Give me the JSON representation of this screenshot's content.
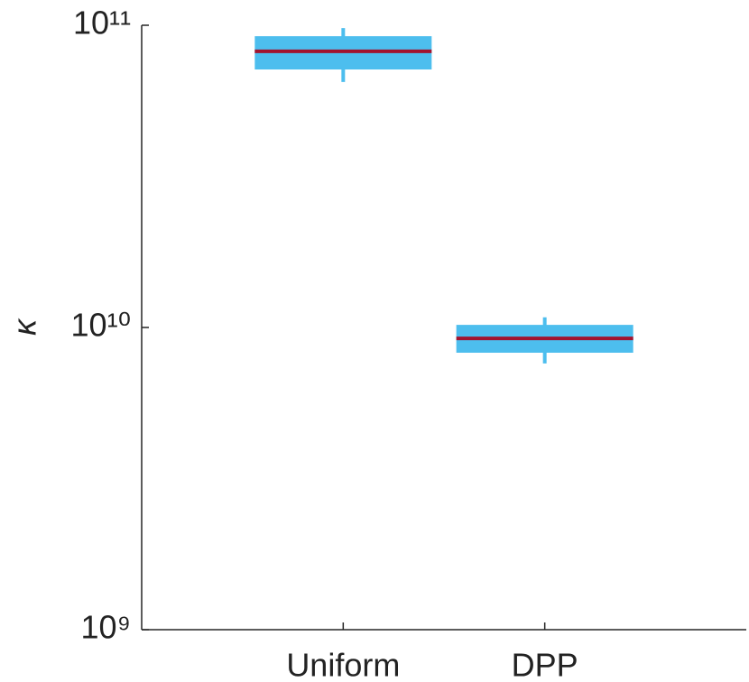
{
  "chart_data": {
    "type": "box",
    "ylabel": "κ",
    "categories": [
      "Uniform",
      "DPP"
    ],
    "boxes": [
      {
        "whislo": 64900000000,
        "q1": 71400000000,
        "med": 82000000000,
        "q3": 92000000000,
        "whishi": 97900000000
      },
      {
        "whislo": 7600000000,
        "q1": 8250000000,
        "med": 9200000000,
        "q3": 10200000000,
        "whishi": 10800000000
      }
    ],
    "box_color": "#4dbeee",
    "median_color": "#a2142f",
    "yscale": "log",
    "ylim": [
      1000000000,
      100000000000
    ],
    "yticks": [
      {
        "value": 1000000000,
        "label": "10⁹"
      },
      {
        "value": 10000000000,
        "label": "10¹⁰"
      },
      {
        "value": 100000000000,
        "label": "10¹¹"
      }
    ]
  }
}
